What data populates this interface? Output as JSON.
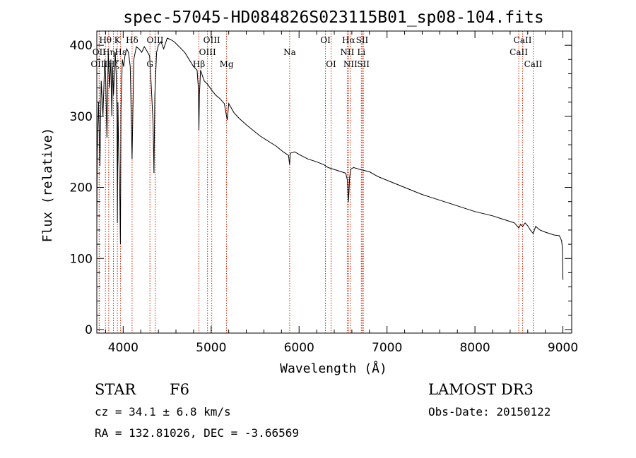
{
  "chart_data": {
    "type": "line",
    "title": "spec-57045-HD084826S023115B01_sp08-104.fits",
    "xlabel": "Wavelength (Å)",
    "ylabel": "Flux (relative)",
    "xlim": [
      3700,
      9100
    ],
    "ylim": [
      -5,
      420
    ],
    "x_ticks": [
      4000,
      5000,
      6000,
      7000,
      8000,
      9000
    ],
    "y_ticks": [
      0,
      100,
      200,
      300,
      400
    ],
    "series": [
      {
        "name": "flux",
        "x": [
          3700,
          3705,
          3720,
          3735,
          3750,
          3770,
          3790,
          3800,
          3815,
          3830,
          3845,
          3860,
          3870,
          3880,
          3890,
          3900,
          3910,
          3920,
          3930,
          3934,
          3940,
          3950,
          3960,
          3968,
          3975,
          3990,
          4005,
          4020,
          4040,
          4060,
          4080,
          4101,
          4120,
          4150,
          4180,
          4210,
          4240,
          4270,
          4300,
          4320,
          4340,
          4350,
          4360,
          4380,
          4400,
          4430,
          4460,
          4500,
          4540,
          4580,
          4620,
          4660,
          4700,
          4750,
          4800,
          4840,
          4855,
          4861,
          4867,
          4880,
          4920,
          4960,
          5000,
          5050,
          5100,
          5150,
          5175,
          5183,
          5200,
          5260,
          5320,
          5400,
          5480,
          5560,
          5650,
          5740,
          5820,
          5880,
          5892,
          5900,
          5950,
          6020,
          6100,
          6200,
          6280,
          6330,
          6380,
          6430,
          6480,
          6530,
          6550,
          6562,
          6575,
          6590,
          6620,
          6700,
          6800,
          6900,
          7000,
          7100,
          7200,
          7300,
          7400,
          7500,
          7600,
          7700,
          7800,
          7900,
          8000,
          8100,
          8200,
          8300,
          8400,
          8450,
          8498,
          8520,
          8542,
          8570,
          8600,
          8630,
          8662,
          8690,
          8740,
          8800,
          8850,
          8900,
          8960,
          8985,
          8995,
          9000
        ],
        "y": [
          140,
          250,
          320,
          230,
          350,
          300,
          380,
          360,
          270,
          390,
          340,
          380,
          300,
          370,
          330,
          360,
          390,
          360,
          300,
          150,
          320,
          240,
          200,
          120,
          310,
          380,
          370,
          385,
          395,
          390,
          370,
          240,
          380,
          398,
          395,
          390,
          398,
          392,
          385,
          340,
          290,
          220,
          330,
          390,
          400,
          405,
          395,
          410,
          408,
          405,
          400,
          395,
          390,
          380,
          370,
          365,
          340,
          280,
          330,
          365,
          350,
          345,
          338,
          330,
          325,
          318,
          300,
          295,
          318,
          305,
          297,
          288,
          280,
          272,
          265,
          258,
          250,
          245,
          232,
          248,
          250,
          245,
          240,
          236,
          232,
          228,
          226,
          224,
          222,
          220,
          210,
          180,
          215,
          226,
          228,
          225,
          222,
          215,
          210,
          205,
          200,
          195,
          190,
          186,
          182,
          178,
          174,
          170,
          166,
          163,
          160,
          156,
          152,
          150,
          143,
          148,
          145,
          150,
          146,
          140,
          135,
          145,
          140,
          137,
          135,
          133,
          132,
          125,
          115,
          70
        ]
      }
    ],
    "line_markers": [
      {
        "label": "Hθ",
        "x": 3798,
        "row": 0
      },
      {
        "label": "OII",
        "x": 3727,
        "row": 1
      },
      {
        "label": "OIII",
        "x": 3727,
        "row": 2
      },
      {
        "label": "K",
        "x": 3934,
        "row": 0
      },
      {
        "label": "Hη",
        "x": 3835,
        "row": 1
      },
      {
        "label": "Hε",
        "x": 3970,
        "row": 1
      },
      {
        "label": "Hζ",
        "x": 3889,
        "row": 2
      },
      {
        "label": "Hδ",
        "x": 4101,
        "row": 0
      },
      {
        "label": "OIII",
        "x": 4363,
        "row": 0
      },
      {
        "label": "G",
        "x": 4304,
        "row": 2
      },
      {
        "label": "OIII",
        "x": 5007,
        "row": 0
      },
      {
        "label": "OIII",
        "x": 4959,
        "row": 1
      },
      {
        "label": "Hβ",
        "x": 4861,
        "row": 2
      },
      {
        "label": "Mg",
        "x": 5175,
        "row": 2
      },
      {
        "label": "Na",
        "x": 5893,
        "row": 1
      },
      {
        "label": "OI",
        "x": 6300,
        "row": 0
      },
      {
        "label": "OI",
        "x": 6364,
        "row": 2
      },
      {
        "label": "Hα",
        "x": 6563,
        "row": 0
      },
      {
        "label": "NII",
        "x": 6548,
        "row": 1
      },
      {
        "label": "NII",
        "x": 6584,
        "row": 2
      },
      {
        "label": "SII",
        "x": 6717,
        "row": 0
      },
      {
        "label": "Li",
        "x": 6708,
        "row": 1
      },
      {
        "label": "SII",
        "x": 6731,
        "row": 2
      },
      {
        "label": "CaII",
        "x": 8542,
        "row": 0
      },
      {
        "label": "CaII",
        "x": 8498,
        "row": 1
      },
      {
        "label": "CaII",
        "x": 8662,
        "row": 2
      }
    ],
    "grid": false,
    "line_color": "#000000",
    "marker_color": "#cc2200"
  },
  "info": {
    "object_type": "STAR",
    "subclass": "F6",
    "survey": "LAMOST DR3",
    "redshift": "cz = 34.1 ± 6.8 km/s",
    "obs_date": "Obs-Date: 20150122",
    "coords": "RA = 132.81026, DEC =  -3.66569"
  }
}
